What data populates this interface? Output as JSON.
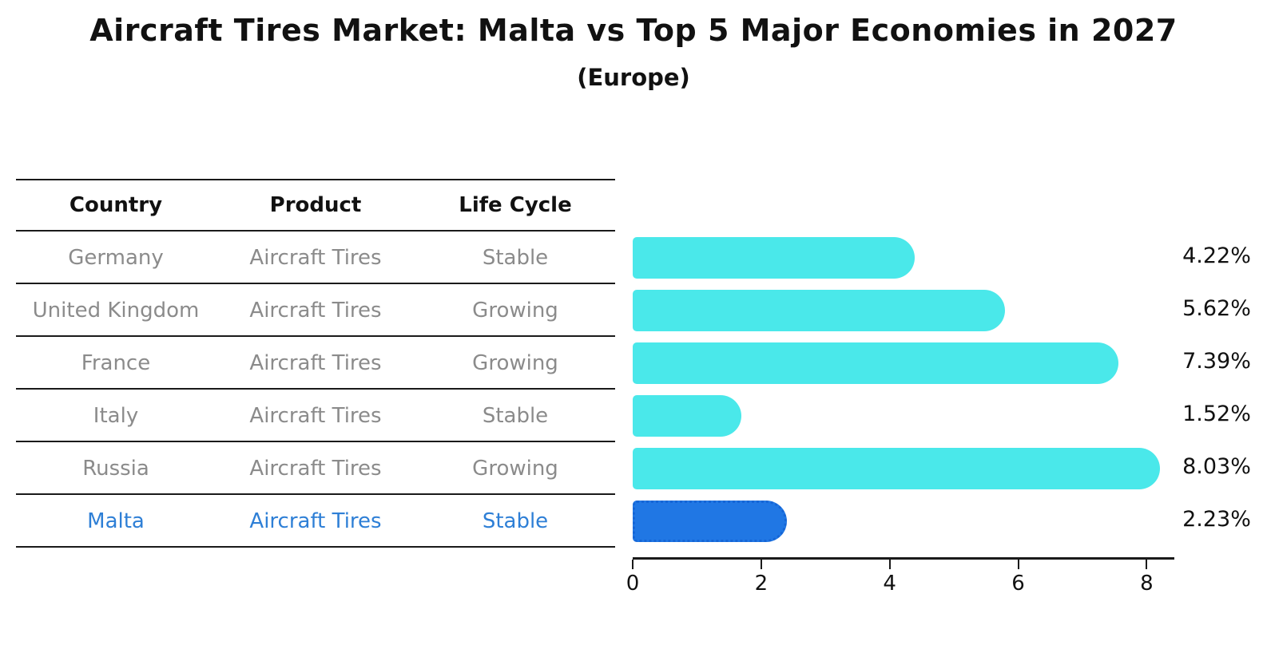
{
  "title": "Aircraft Tires Market: Malta vs Top 5 Major Economies in 2027",
  "subtitle": "(Europe)",
  "table": {
    "headers": [
      "Country",
      "Product",
      "Life Cycle"
    ],
    "rows": [
      {
        "country": "Germany",
        "product": "Aircraft Tires",
        "life_cycle": "Stable",
        "highlight": false
      },
      {
        "country": "United Kingdom",
        "product": "Aircraft Tires",
        "life_cycle": "Growing",
        "highlight": false
      },
      {
        "country": "France",
        "product": "Aircraft Tires",
        "life_cycle": "Growing",
        "highlight": false
      },
      {
        "country": "Italy",
        "product": "Aircraft Tires",
        "life_cycle": "Stable",
        "highlight": false
      },
      {
        "country": "Russia",
        "product": "Aircraft Tires",
        "life_cycle": "Growing",
        "highlight": false
      },
      {
        "country": "Malta",
        "product": "Aircraft Tires",
        "life_cycle": "Stable",
        "highlight": true
      }
    ]
  },
  "chart_data": {
    "type": "bar",
    "orientation": "horizontal",
    "categories": [
      "Germany",
      "United Kingdom",
      "France",
      "Italy",
      "Russia",
      "Malta"
    ],
    "values": [
      4.22,
      5.62,
      7.39,
      1.52,
      8.03,
      2.23
    ],
    "value_labels": [
      "4.22%",
      "5.62%",
      "7.39%",
      "1.52%",
      "8.03%",
      "2.23%"
    ],
    "highlight_index": 5,
    "xticks": [
      0,
      2,
      4,
      6,
      8
    ],
    "xtick_labels": [
      "0",
      "2",
      "4",
      "6",
      "8"
    ],
    "xlim": [
      0,
      8.43
    ],
    "grid": false,
    "legend": false,
    "title": "Aircraft Tires Market: Malta vs Top 5 Major Economies in 2027",
    "xlabel": "",
    "ylabel": ""
  },
  "colors": {
    "bar_cyan": "#4ae8ea",
    "highlight_bar": "#2077e4",
    "highlight_border": "#1565d6",
    "highlight_text": "#2e7fd6",
    "gray_text": "#8b8b8b",
    "line": "#1a1a1a"
  }
}
